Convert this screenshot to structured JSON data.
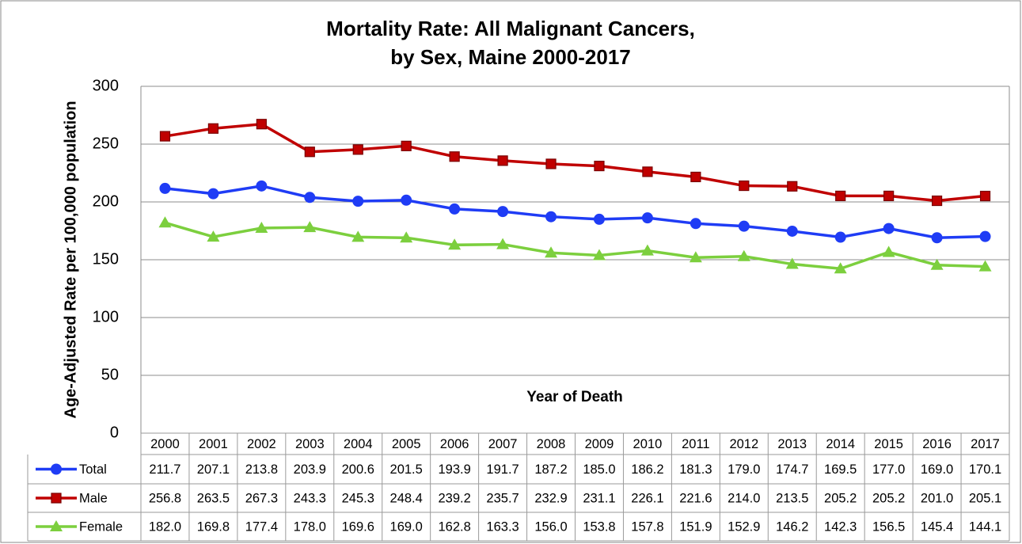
{
  "chart_data": {
    "type": "line",
    "title": [
      "Mortality Rate: All Malignant Cancers,",
      "by Sex, Maine 2000-2017"
    ],
    "x_label": "Year of Death",
    "y_label": "Age-Adjusted Rate per 100,000 population",
    "categories": [
      "2000",
      "2001",
      "2002",
      "2003",
      "2004",
      "2005",
      "2006",
      "2007",
      "2008",
      "2009",
      "2010",
      "2011",
      "2012",
      "2013",
      "2014",
      "2015",
      "2016",
      "2017"
    ],
    "series": [
      {
        "name": "Total",
        "color": "#1f3cf5",
        "marker": "circle",
        "values": [
          211.7,
          207.1,
          213.8,
          203.9,
          200.6,
          201.5,
          193.9,
          191.7,
          187.2,
          185.0,
          186.2,
          181.3,
          179.0,
          174.7,
          169.5,
          177.0,
          169.0,
          170.1
        ],
        "value_labels": [
          "211.7",
          "207.1",
          "213.8",
          "203.9",
          "200.6",
          "201.5",
          "193.9",
          "191.7",
          "187.2",
          "185.0",
          "186.2",
          "181.3",
          "179.0",
          "174.7",
          "169.5",
          "177.0",
          "169.0",
          "170.1"
        ]
      },
      {
        "name": "Male",
        "color": "#c00000",
        "marker": "square",
        "values": [
          256.8,
          263.5,
          267.3,
          243.3,
          245.3,
          248.4,
          239.2,
          235.7,
          232.9,
          231.1,
          226.1,
          221.6,
          214.0,
          213.5,
          205.2,
          205.2,
          201.0,
          205.1
        ],
        "value_labels": [
          "256.8",
          "263.5",
          "267.3",
          "243.3",
          "245.3",
          "248.4",
          "239.2",
          "235.7",
          "232.9",
          "231.1",
          "226.1",
          "221.6",
          "214.0",
          "213.5",
          "205.2",
          "205.2",
          "201.0",
          "205.1"
        ]
      },
      {
        "name": "Female",
        "color": "#7ccf3e",
        "marker": "triangle",
        "values": [
          182.0,
          169.8,
          177.4,
          178.0,
          169.6,
          169.0,
          162.8,
          163.3,
          156.0,
          153.8,
          157.8,
          151.9,
          152.9,
          146.2,
          142.3,
          156.5,
          145.4,
          144.1
        ],
        "value_labels": [
          "182.0",
          "169.8",
          "177.4",
          "178.0",
          "169.6",
          "169.0",
          "162.8",
          "163.3",
          "156.0",
          "153.8",
          "157.8",
          "151.9",
          "152.9",
          "146.2",
          "142.3",
          "156.5",
          "145.4",
          "144.1"
        ]
      }
    ],
    "ylim": [
      0,
      300
    ],
    "yticks": [
      0,
      50,
      100,
      150,
      200,
      250,
      300
    ],
    "grid": true
  }
}
